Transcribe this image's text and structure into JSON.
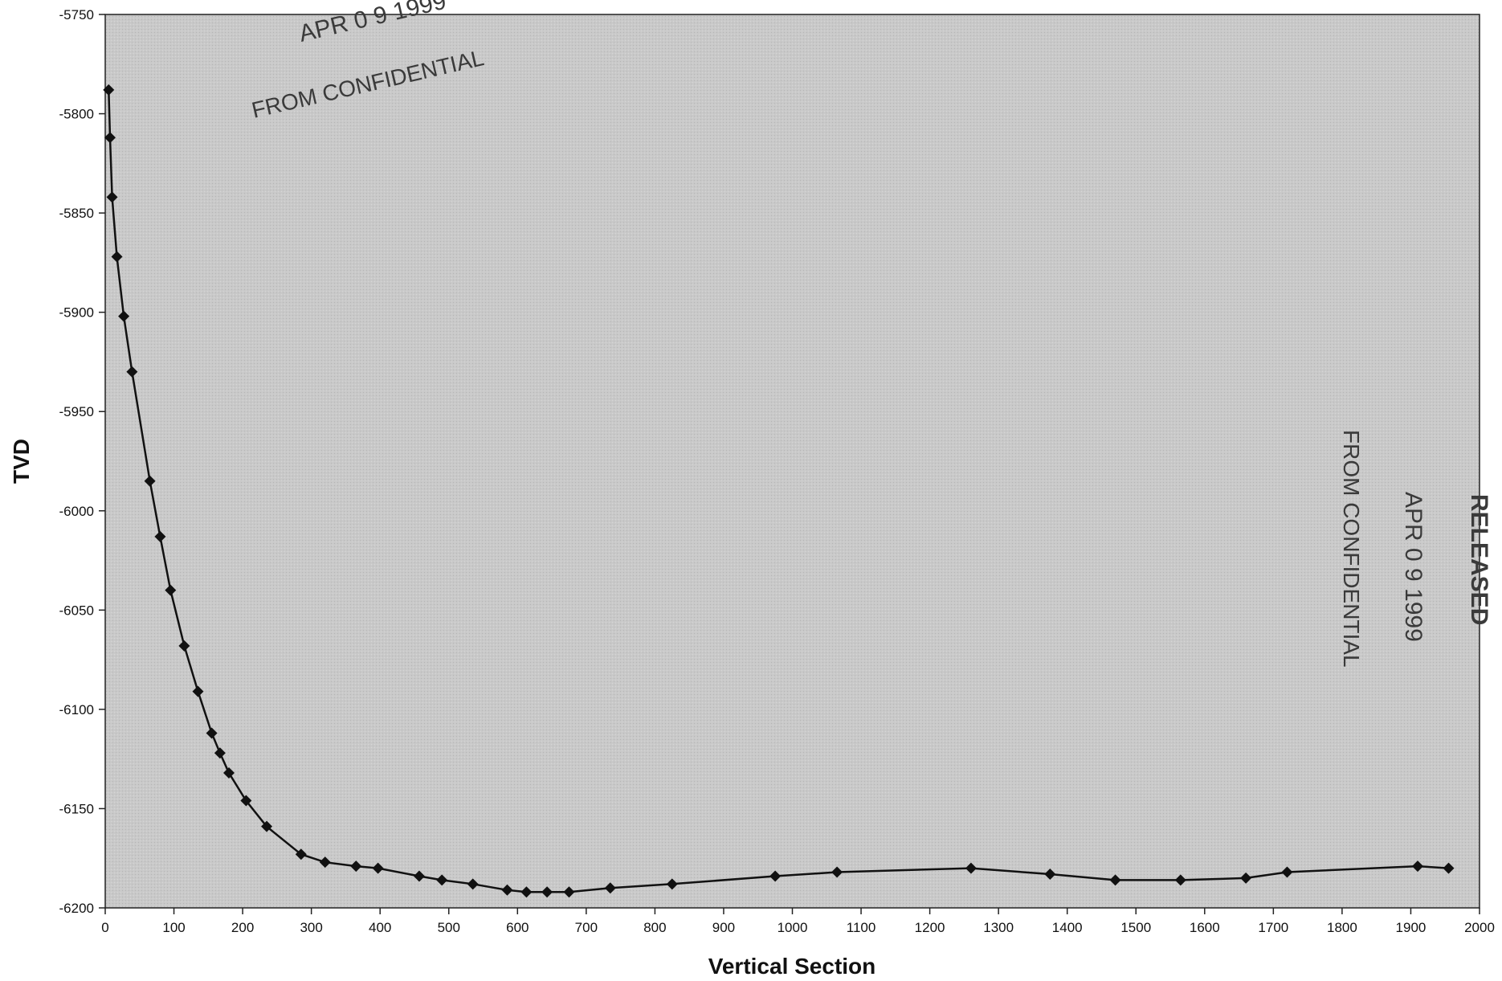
{
  "chart_data": {
    "type": "scatter",
    "title": "",
    "xlabel": "Vertical Section",
    "ylabel": "TVD",
    "xlim": [
      0,
      2000
    ],
    "ylim": [
      -6200,
      -5750
    ],
    "x_ticks": [
      0,
      100,
      200,
      300,
      400,
      500,
      600,
      700,
      800,
      900,
      1000,
      1100,
      1200,
      1300,
      1400,
      1500,
      1600,
      1700,
      1800,
      1900,
      2000
    ],
    "y_ticks": [
      -5750,
      -5800,
      -5850,
      -5900,
      -5950,
      -6000,
      -6050,
      -6100,
      -6150,
      -6200
    ],
    "grid": false,
    "legend": "none",
    "marker": "diamond",
    "line": "connected",
    "series": [
      {
        "x": [
          5,
          7,
          10,
          17,
          27,
          39,
          65,
          80,
          95,
          115,
          135,
          155,
          167,
          180,
          205,
          235,
          285,
          320,
          365,
          397,
          457,
          490,
          535,
          585,
          613,
          643,
          675,
          735,
          825,
          975,
          1065,
          1260,
          1375,
          1470,
          1565,
          1660,
          1720,
          1910,
          1955
        ],
        "y": [
          -5788,
          -5812,
          -5842,
          -5872,
          -5902,
          -5930,
          -5985,
          -6013,
          -6040,
          -6068,
          -6091,
          -6112,
          -6122,
          -6132,
          -6146,
          -6159,
          -6173,
          -6177,
          -6179,
          -6180,
          -6184,
          -6186,
          -6188,
          -6191,
          -6192,
          -6192,
          -6192,
          -6190,
          -6188,
          -6184,
          -6182,
          -6180,
          -6183,
          -6186,
          -6186,
          -6185,
          -6182,
          -6179,
          -6180
        ]
      }
    ]
  },
  "stamps": {
    "top_date": "APR 0 9 1999",
    "top_text": "FROM CONFIDENTIAL",
    "right_text": "FROM CONFIDENTIAL",
    "right_date": "APR 0 9 1999",
    "right_released": "RELEASED"
  },
  "colors": {
    "plot_bg": "#c8c8c8",
    "line": "#111111",
    "marker": "#111111"
  }
}
